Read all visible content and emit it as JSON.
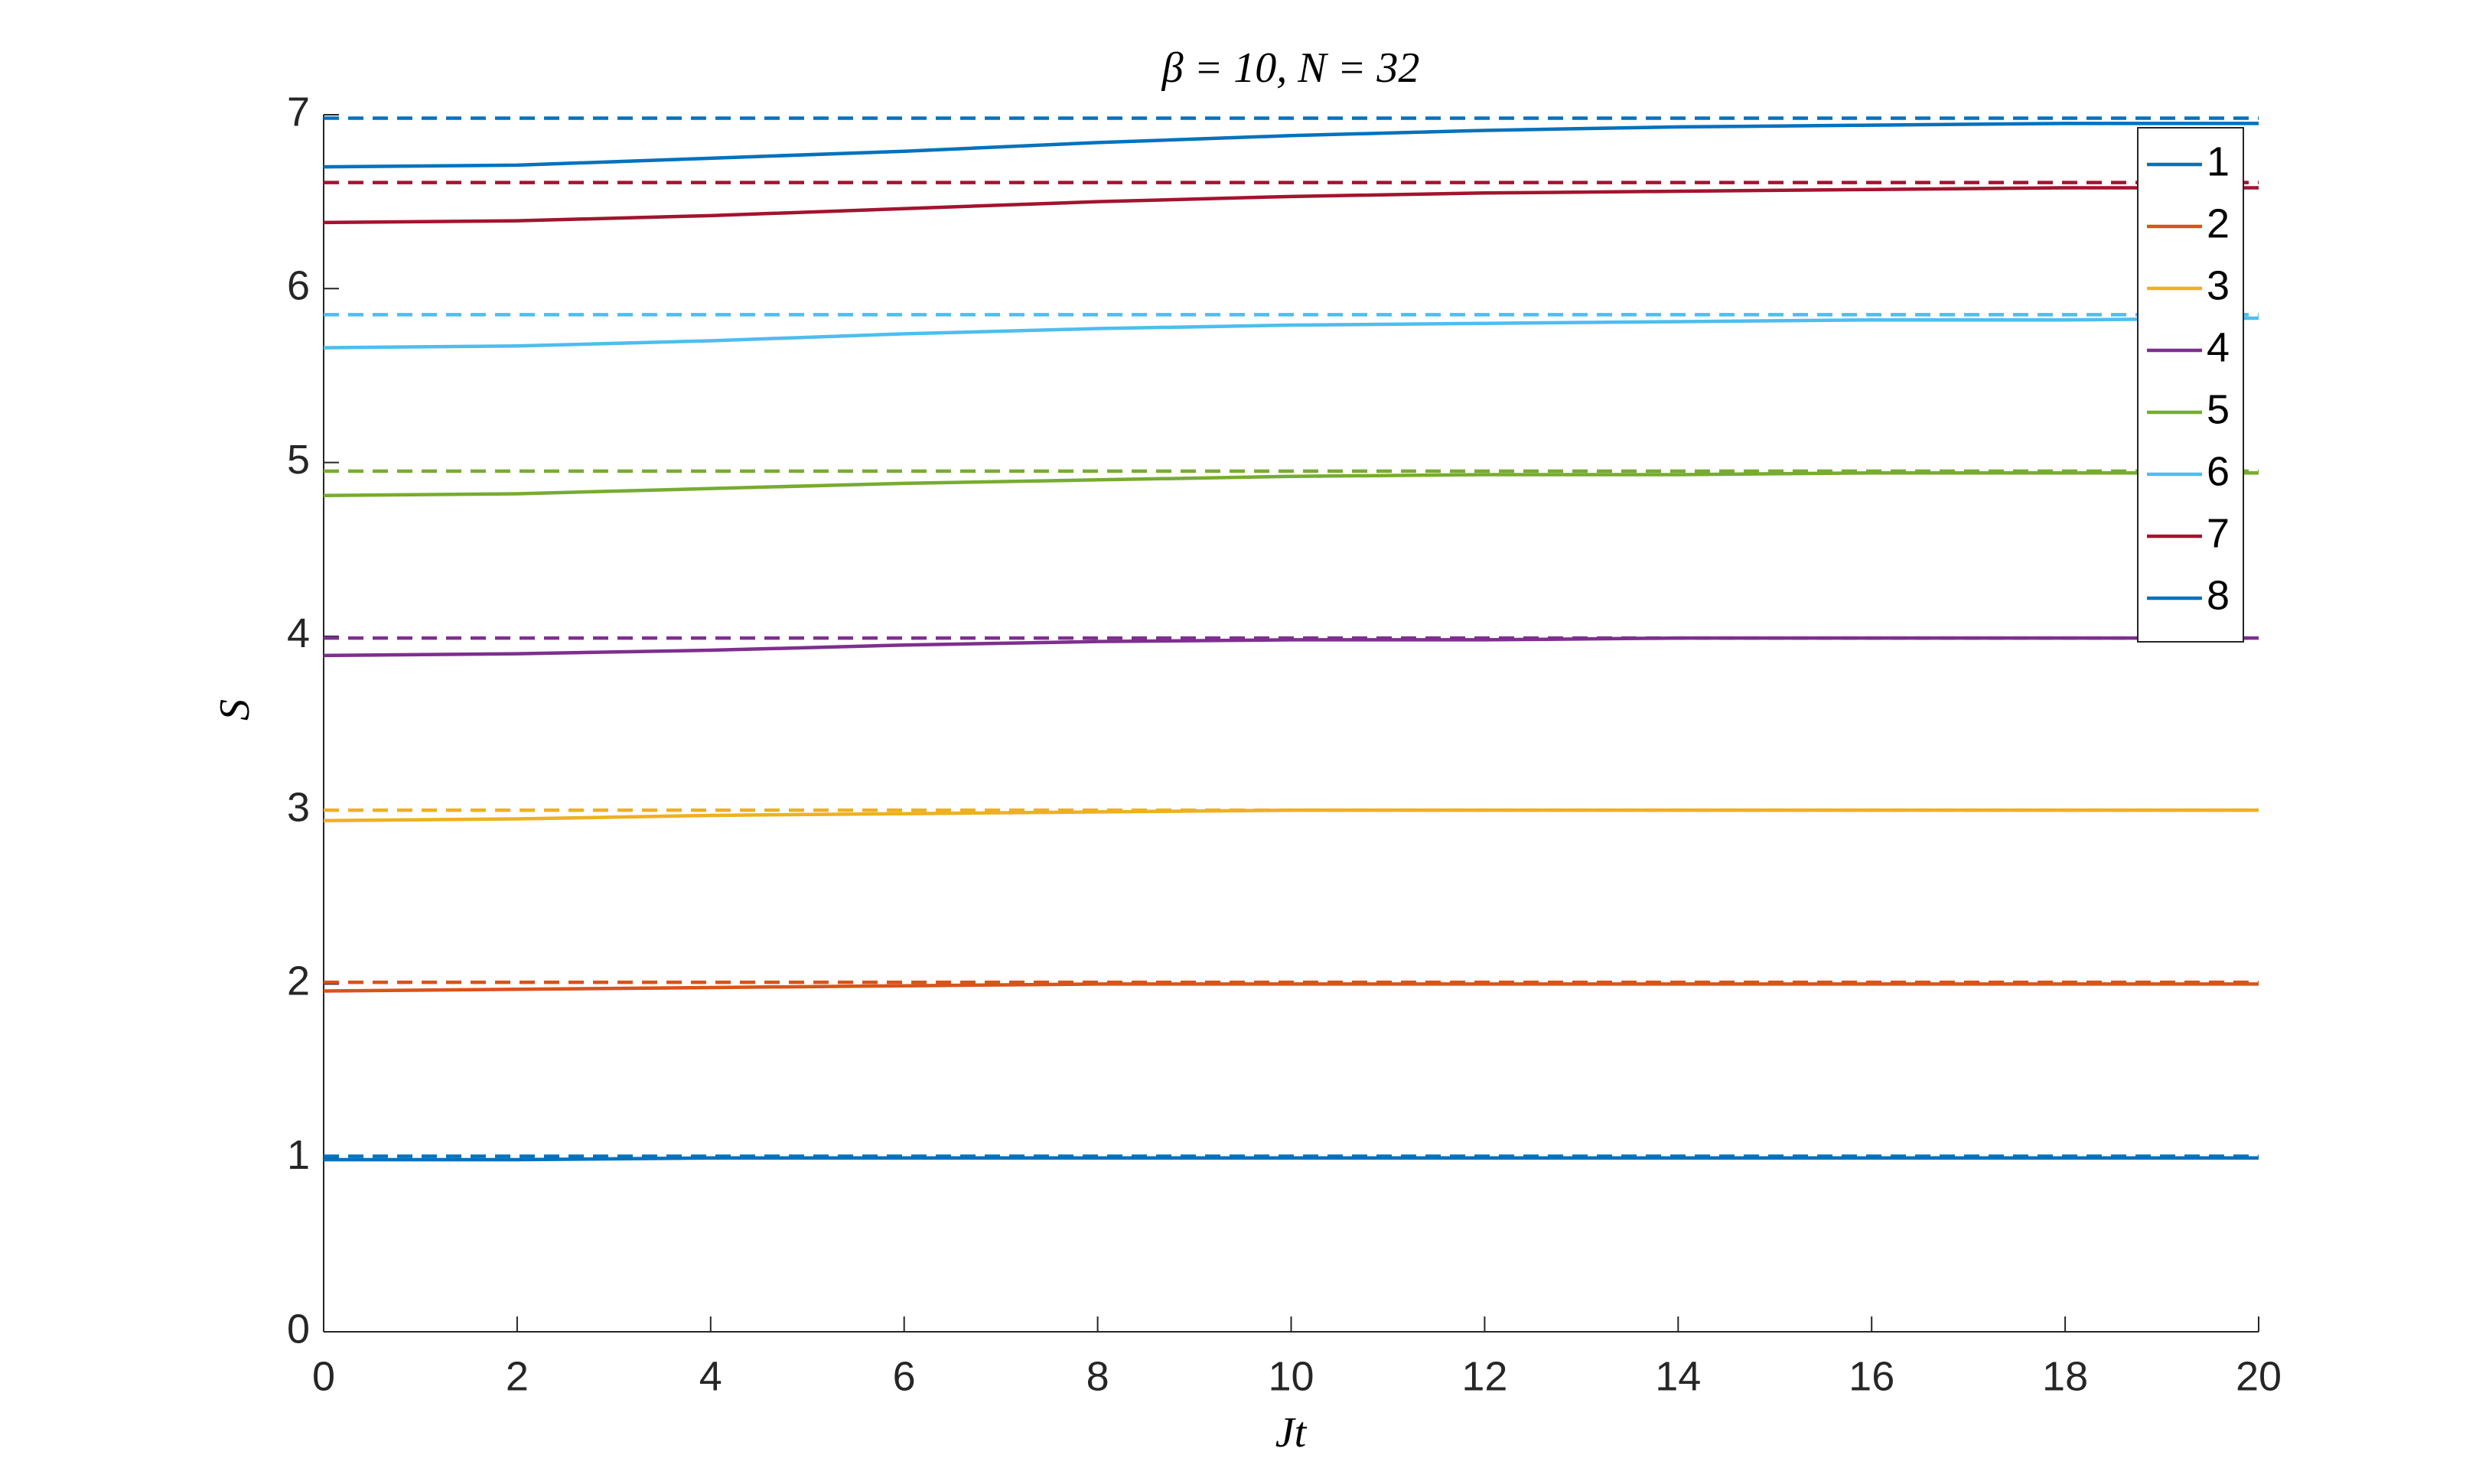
{
  "chart_data": {
    "type": "line",
    "title": "β = 10, N = 32",
    "xlabel": "Jt",
    "ylabel": "S",
    "x": [
      0,
      2,
      4,
      6,
      8,
      10,
      12,
      14,
      16,
      18,
      20
    ],
    "xlim": [
      0,
      20
    ],
    "ylim": [
      0,
      7
    ],
    "xticks": [
      0,
      2,
      4,
      6,
      8,
      10,
      12,
      14,
      16,
      18,
      20
    ],
    "yticks": [
      0,
      1,
      2,
      3,
      4,
      5,
      6,
      7
    ],
    "legend": "upper right",
    "series": [
      {
        "name": "1",
        "color": "#0072BD",
        "values": [
          0.99,
          0.99,
          1.0,
          1.0,
          1.0,
          1.0,
          1.0,
          1.0,
          1.0,
          1.0,
          1.0
        ],
        "limit": 1.01
      },
      {
        "name": "2",
        "color": "#D95319",
        "values": [
          1.96,
          1.97,
          1.98,
          1.99,
          2.0,
          2.0,
          2.0,
          2.0,
          2.0,
          2.0,
          2.0
        ],
        "limit": 2.01
      },
      {
        "name": "3",
        "color": "#EDB120",
        "values": [
          2.94,
          2.95,
          2.97,
          2.98,
          2.99,
          3.0,
          3.0,
          3.0,
          3.0,
          3.0,
          3.0
        ],
        "limit": 3.0
      },
      {
        "name": "4",
        "color": "#7E2F8E",
        "values": [
          3.89,
          3.9,
          3.92,
          3.95,
          3.97,
          3.98,
          3.98,
          3.99,
          3.99,
          3.99,
          3.99
        ],
        "limit": 3.99
      },
      {
        "name": "5",
        "color": "#77AC30",
        "values": [
          4.81,
          4.82,
          4.85,
          4.88,
          4.9,
          4.92,
          4.93,
          4.93,
          4.94,
          4.94,
          4.94
        ],
        "limit": 4.95
      },
      {
        "name": "6",
        "color": "#4DBEEE",
        "values": [
          5.66,
          5.67,
          5.7,
          5.74,
          5.77,
          5.79,
          5.8,
          5.81,
          5.82,
          5.82,
          5.83
        ],
        "limit": 5.85
      },
      {
        "name": "7",
        "color": "#A2142F",
        "values": [
          6.38,
          6.39,
          6.42,
          6.46,
          6.5,
          6.53,
          6.55,
          6.56,
          6.57,
          6.58,
          6.58
        ],
        "limit": 6.61
      },
      {
        "name": "8",
        "color": "#0072BD",
        "values": [
          6.7,
          6.71,
          6.75,
          6.79,
          6.84,
          6.88,
          6.91,
          6.93,
          6.94,
          6.95,
          6.95
        ],
        "limit": 6.98
      }
    ]
  }
}
